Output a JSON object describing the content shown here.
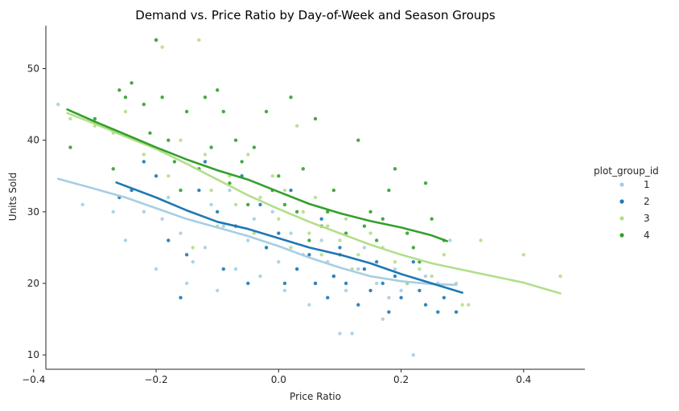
{
  "chart_data": {
    "type": "scatter",
    "title": "Demand vs. Price Ratio by Day-of-Week and Season Groups",
    "xlabel": "Price Ratio",
    "ylabel": "Units Sold",
    "xlim": [
      -0.38,
      0.5
    ],
    "ylim": [
      8,
      56
    ],
    "xticks": [
      -0.4,
      -0.2,
      0.0,
      0.2,
      0.4
    ],
    "xtick_labels": [
      "−0.4",
      "−0.2",
      "0.0",
      "0.2",
      "0.4"
    ],
    "yticks": [
      10,
      20,
      30,
      40,
      50
    ],
    "ytick_labels": [
      "10",
      "20",
      "30",
      "40",
      "50"
    ],
    "legend": {
      "title": "plot_group_id",
      "placement": "right"
    },
    "series": [
      {
        "name": "1",
        "color": "#a6cee3",
        "points": [
          [
            -0.36,
            45
          ],
          [
            -0.32,
            31
          ],
          [
            -0.27,
            30
          ],
          [
            -0.25,
            26
          ],
          [
            -0.22,
            30
          ],
          [
            -0.2,
            22
          ],
          [
            -0.19,
            29
          ],
          [
            -0.18,
            32
          ],
          [
            -0.16,
            27
          ],
          [
            -0.15,
            20
          ],
          [
            -0.14,
            23
          ],
          [
            -0.12,
            25
          ],
          [
            -0.11,
            31
          ],
          [
            -0.1,
            19
          ],
          [
            -0.09,
            28
          ],
          [
            -0.08,
            33
          ],
          [
            -0.07,
            22
          ],
          [
            -0.05,
            26
          ],
          [
            -0.04,
            29
          ],
          [
            -0.03,
            21
          ],
          [
            -0.02,
            25
          ],
          [
            -0.01,
            30
          ],
          [
            0.0,
            23
          ],
          [
            0.01,
            19
          ],
          [
            0.02,
            27
          ],
          [
            0.03,
            22
          ],
          [
            0.04,
            24
          ],
          [
            0.05,
            17
          ],
          [
            0.06,
            20
          ],
          [
            0.07,
            26
          ],
          [
            0.08,
            23
          ],
          [
            0.09,
            21
          ],
          [
            0.1,
            13
          ],
          [
            0.11,
            19
          ],
          [
            0.12,
            13
          ],
          [
            0.13,
            22
          ],
          [
            0.14,
            25
          ],
          [
            0.16,
            20
          ],
          [
            0.17,
            15
          ],
          [
            0.18,
            18
          ],
          [
            0.19,
            22
          ],
          [
            0.2,
            19
          ],
          [
            0.22,
            10
          ],
          [
            0.24,
            21
          ],
          [
            0.26,
            20
          ],
          [
            0.28,
            26
          ]
        ],
        "trend": [
          [
            -0.36,
            34.6
          ],
          [
            -0.3,
            33.2
          ],
          [
            -0.25,
            32.0
          ],
          [
            -0.2,
            30.5
          ],
          [
            -0.15,
            29.0
          ],
          [
            -0.1,
            27.8
          ],
          [
            -0.05,
            26.6
          ],
          [
            0.0,
            25.2
          ],
          [
            0.05,
            23.6
          ],
          [
            0.1,
            22.2
          ],
          [
            0.15,
            21.0
          ],
          [
            0.2,
            20.3
          ],
          [
            0.25,
            19.9
          ],
          [
            0.29,
            19.8
          ]
        ]
      },
      {
        "name": "2",
        "color": "#1f78b4",
        "points": [
          [
            -0.26,
            32
          ],
          [
            -0.24,
            33
          ],
          [
            -0.22,
            37
          ],
          [
            -0.2,
            35
          ],
          [
            -0.18,
            26
          ],
          [
            -0.16,
            18
          ],
          [
            -0.15,
            24
          ],
          [
            -0.13,
            33
          ],
          [
            -0.12,
            37
          ],
          [
            -0.1,
            30
          ],
          [
            -0.09,
            22
          ],
          [
            -0.07,
            28
          ],
          [
            -0.06,
            35
          ],
          [
            -0.05,
            20
          ],
          [
            -0.03,
            31
          ],
          [
            -0.02,
            25
          ],
          [
            0.0,
            27
          ],
          [
            0.01,
            20
          ],
          [
            0.02,
            33
          ],
          [
            0.03,
            22
          ],
          [
            0.05,
            24
          ],
          [
            0.06,
            20
          ],
          [
            0.07,
            29
          ],
          [
            0.08,
            18
          ],
          [
            0.09,
            21
          ],
          [
            0.1,
            25
          ],
          [
            0.11,
            20
          ],
          [
            0.13,
            17
          ],
          [
            0.14,
            22
          ],
          [
            0.15,
            19
          ],
          [
            0.16,
            23
          ],
          [
            0.17,
            20
          ],
          [
            0.18,
            16
          ],
          [
            0.19,
            21
          ],
          [
            0.2,
            18
          ],
          [
            0.21,
            20
          ],
          [
            0.22,
            23
          ],
          [
            0.23,
            19
          ],
          [
            0.24,
            17
          ],
          [
            0.26,
            16
          ],
          [
            0.27,
            18
          ],
          [
            0.29,
            16
          ]
        ],
        "trend": [
          [
            -0.265,
            34.1
          ],
          [
            -0.2,
            32.0
          ],
          [
            -0.15,
            30.2
          ],
          [
            -0.1,
            28.6
          ],
          [
            -0.05,
            27.6
          ],
          [
            0.0,
            26.3
          ],
          [
            0.05,
            25.0
          ],
          [
            0.1,
            24.0
          ],
          [
            0.15,
            22.8
          ],
          [
            0.2,
            21.3
          ],
          [
            0.25,
            20.0
          ],
          [
            0.3,
            18.7
          ]
        ]
      },
      {
        "name": "3",
        "color": "#b2df8a",
        "points": [
          [
            -0.34,
            43
          ],
          [
            -0.3,
            42
          ],
          [
            -0.27,
            41
          ],
          [
            -0.25,
            44
          ],
          [
            -0.22,
            38
          ],
          [
            -0.2,
            54
          ],
          [
            -0.19,
            53
          ],
          [
            -0.18,
            35
          ],
          [
            -0.16,
            40
          ],
          [
            -0.14,
            25
          ],
          [
            -0.13,
            54
          ],
          [
            -0.12,
            38
          ],
          [
            -0.11,
            33
          ],
          [
            -0.1,
            28
          ],
          [
            -0.08,
            35
          ],
          [
            -0.07,
            31
          ],
          [
            -0.05,
            38
          ],
          [
            -0.04,
            27
          ],
          [
            -0.03,
            32
          ],
          [
            -0.01,
            35
          ],
          [
            0.0,
            29
          ],
          [
            0.01,
            33
          ],
          [
            0.02,
            25
          ],
          [
            0.03,
            42
          ],
          [
            0.04,
            30
          ],
          [
            0.05,
            27
          ],
          [
            0.06,
            32
          ],
          [
            0.07,
            24
          ],
          [
            0.08,
            28
          ],
          [
            0.1,
            26
          ],
          [
            0.11,
            29
          ],
          [
            0.12,
            22
          ],
          [
            0.13,
            24
          ],
          [
            0.15,
            27
          ],
          [
            0.17,
            25
          ],
          [
            0.19,
            23
          ],
          [
            0.21,
            20
          ],
          [
            0.23,
            22
          ],
          [
            0.25,
            21
          ],
          [
            0.27,
            24
          ],
          [
            0.29,
            20
          ],
          [
            0.3,
            17
          ],
          [
            0.31,
            17
          ],
          [
            0.33,
            26
          ],
          [
            0.4,
            24
          ],
          [
            0.46,
            21
          ]
        ],
        "trend": [
          [
            -0.345,
            43.8
          ],
          [
            -0.3,
            42.3
          ],
          [
            -0.25,
            40.5
          ],
          [
            -0.2,
            38.8
          ],
          [
            -0.15,
            36.7
          ],
          [
            -0.1,
            34.5
          ],
          [
            -0.05,
            32.3
          ],
          [
            0.0,
            30.4
          ],
          [
            0.05,
            28.6
          ],
          [
            0.1,
            27.0
          ],
          [
            0.15,
            25.4
          ],
          [
            0.2,
            24.0
          ],
          [
            0.25,
            22.8
          ],
          [
            0.3,
            21.9
          ],
          [
            0.35,
            21.0
          ],
          [
            0.4,
            20.1
          ],
          [
            0.46,
            18.6
          ]
        ]
      },
      {
        "name": "4",
        "color": "#33a02c",
        "points": [
          [
            -0.34,
            39
          ],
          [
            -0.3,
            43
          ],
          [
            -0.27,
            36
          ],
          [
            -0.26,
            47
          ],
          [
            -0.25,
            46
          ],
          [
            -0.24,
            48
          ],
          [
            -0.22,
            45
          ],
          [
            -0.21,
            41
          ],
          [
            -0.2,
            54
          ],
          [
            -0.19,
            46
          ],
          [
            -0.18,
            40
          ],
          [
            -0.17,
            37
          ],
          [
            -0.16,
            33
          ],
          [
            -0.15,
            44
          ],
          [
            -0.13,
            36
          ],
          [
            -0.12,
            46
          ],
          [
            -0.11,
            39
          ],
          [
            -0.1,
            47
          ],
          [
            -0.09,
            44
          ],
          [
            -0.08,
            34
          ],
          [
            -0.07,
            40
          ],
          [
            -0.06,
            37
          ],
          [
            -0.05,
            31
          ],
          [
            -0.04,
            39
          ],
          [
            -0.02,
            44
          ],
          [
            -0.01,
            33
          ],
          [
            0.0,
            35
          ],
          [
            0.01,
            31
          ],
          [
            0.02,
            46
          ],
          [
            0.03,
            30
          ],
          [
            0.04,
            36
          ],
          [
            0.05,
            26
          ],
          [
            0.06,
            43
          ],
          [
            0.07,
            28
          ],
          [
            0.08,
            30
          ],
          [
            0.09,
            33
          ],
          [
            0.1,
            24
          ],
          [
            0.11,
            27
          ],
          [
            0.13,
            40
          ],
          [
            0.14,
            28
          ],
          [
            0.15,
            30
          ],
          [
            0.16,
            26
          ],
          [
            0.17,
            29
          ],
          [
            0.18,
            33
          ],
          [
            0.19,
            36
          ],
          [
            0.21,
            27
          ],
          [
            0.22,
            25
          ],
          [
            0.23,
            23
          ],
          [
            0.24,
            34
          ],
          [
            0.25,
            29
          ],
          [
            0.27,
            26
          ]
        ],
        "trend": [
          [
            -0.345,
            44.3
          ],
          [
            -0.3,
            42.6
          ],
          [
            -0.25,
            40.8
          ],
          [
            -0.2,
            39.0
          ],
          [
            -0.15,
            37.3
          ],
          [
            -0.1,
            35.8
          ],
          [
            -0.05,
            34.5
          ],
          [
            0.0,
            32.8
          ],
          [
            0.05,
            31.1
          ],
          [
            0.1,
            29.8
          ],
          [
            0.15,
            28.7
          ],
          [
            0.2,
            27.8
          ],
          [
            0.25,
            26.7
          ],
          [
            0.275,
            25.9
          ]
        ]
      }
    ]
  }
}
